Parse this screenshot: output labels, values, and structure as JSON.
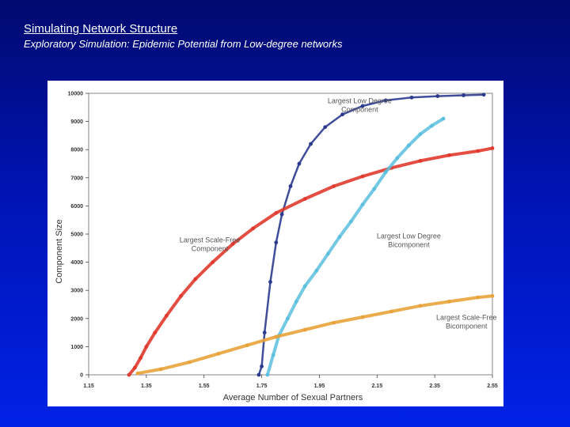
{
  "slide": {
    "title": "Simulating Network Structure",
    "subtitle": "Exploratory Simulation:  Epidemic Potential from Low-degree networks"
  },
  "colors": {
    "background_top": "#000a6e",
    "background_bottom": "#0022e6",
    "navy_series": "#2b3a8f",
    "red_series": "#e03a2e",
    "cyan_series": "#5bc0de",
    "orange_series": "#e8a33a"
  },
  "chart_data": {
    "type": "scatter",
    "title": "",
    "xlabel": "Average Number of Sexual Partners",
    "ylabel": "Component Size",
    "xlim": [
      1.15,
      2.55
    ],
    "ylim": [
      0,
      10000
    ],
    "x_ticks": [
      "1.15",
      "1.35",
      "1.55",
      "1.75",
      "1.95",
      "2.15",
      "2.35",
      "2.55"
    ],
    "y_ticks": [
      "0",
      "1000",
      "2000",
      "3000",
      "4000",
      "5000",
      "6000",
      "7000",
      "8000",
      "9000",
      "10000"
    ],
    "grid": false,
    "series": [
      {
        "name": "Largest Low Degree Component",
        "label_lines": [
          "Largest Low Degree",
          "Component"
        ],
        "color": "#2b3a8f",
        "x": [
          1.74,
          1.75,
          1.76,
          1.78,
          1.8,
          1.82,
          1.85,
          1.88,
          1.92,
          1.97,
          2.03,
          2.1,
          2.18,
          2.27,
          2.36,
          2.45,
          2.52
        ],
        "y": [
          0,
          300,
          1500,
          3300,
          4700,
          5700,
          6700,
          7500,
          8200,
          8800,
          9250,
          9550,
          9750,
          9850,
          9900,
          9930,
          9950
        ]
      },
      {
        "name": "Largest Scale-Free Component",
        "label_lines": [
          "Largest Scale-Free",
          "Component"
        ],
        "color": "#e03a2e",
        "x": [
          1.29,
          1.31,
          1.33,
          1.35,
          1.38,
          1.42,
          1.47,
          1.52,
          1.58,
          1.65,
          1.72,
          1.8,
          1.9,
          2.0,
          2.1,
          2.2,
          2.3,
          2.4,
          2.5,
          2.55
        ],
        "y": [
          0,
          250,
          600,
          1000,
          1500,
          2100,
          2800,
          3400,
          4000,
          4650,
          5200,
          5750,
          6250,
          6700,
          7050,
          7350,
          7600,
          7800,
          7950,
          8050
        ]
      },
      {
        "name": "Largest Low Degree Bicomponent",
        "label_lines": [
          "Largest Low Degree",
          "Bicomponent"
        ],
        "color": "#5bc0de",
        "x": [
          1.77,
          1.79,
          1.81,
          1.84,
          1.87,
          1.9,
          1.94,
          1.98,
          2.02,
          2.06,
          2.1,
          2.14,
          2.18,
          2.22,
          2.26,
          2.3,
          2.34,
          2.38
        ],
        "y": [
          0,
          700,
          1400,
          2000,
          2600,
          3150,
          3700,
          4300,
          4900,
          5450,
          6050,
          6600,
          7200,
          7700,
          8150,
          8550,
          8850,
          9100
        ]
      },
      {
        "name": "Largest Scale-Free Bicomponent",
        "label_lines": [
          "Largest Scale-Free",
          "Bicomponent"
        ],
        "color": "#e8a33a",
        "x": [
          1.32,
          1.4,
          1.5,
          1.6,
          1.7,
          1.8,
          1.9,
          2.0,
          2.1,
          2.2,
          2.3,
          2.4,
          2.5,
          2.55
        ],
        "y": [
          50,
          200,
          450,
          750,
          1050,
          1350,
          1600,
          1850,
          2050,
          2250,
          2450,
          2600,
          2750,
          2800
        ]
      }
    ]
  }
}
